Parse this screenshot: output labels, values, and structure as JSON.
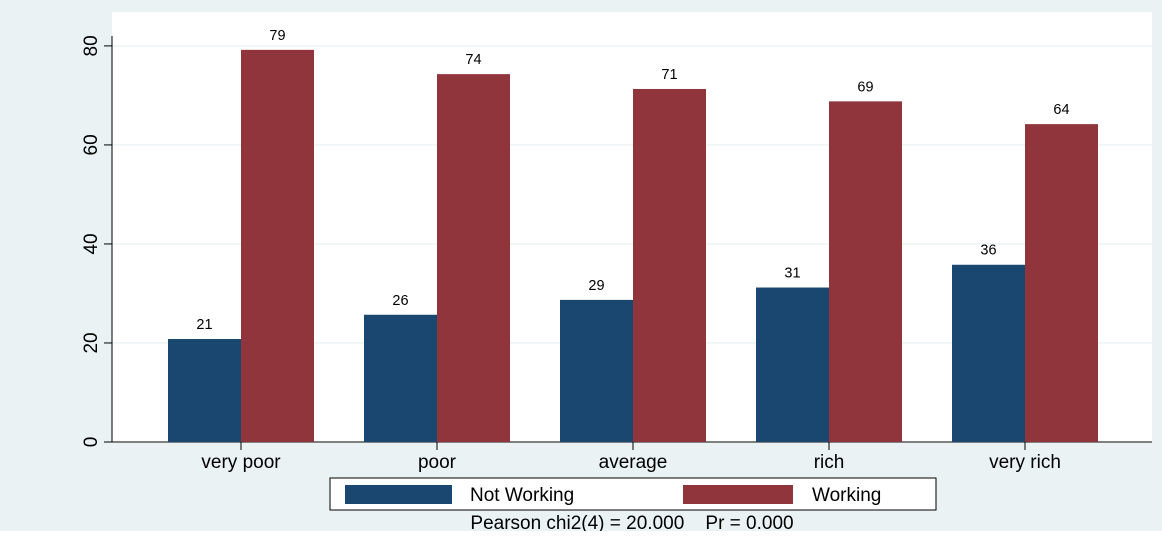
{
  "chart_data": {
    "type": "bar",
    "categories": [
      "very poor",
      "poor",
      "average",
      "rich",
      "very rich"
    ],
    "series": [
      {
        "name": "Not Working",
        "values": [
          20.8,
          25.7,
          28.7,
          31.2,
          35.8
        ],
        "labels": [
          "21",
          "26",
          "29",
          "31",
          "36"
        ],
        "color": "#1a476f"
      },
      {
        "name": "Working",
        "values": [
          79.2,
          74.3,
          71.3,
          68.8,
          64.2
        ],
        "labels": [
          "79",
          "74",
          "71",
          "69",
          "64"
        ],
        "color": "#90353b"
      }
    ],
    "ylim": [
      0,
      82
    ],
    "yticks": [
      0,
      20,
      40,
      60,
      80
    ],
    "ytick_labels": [
      "0",
      "20",
      "40",
      "60",
      "80"
    ],
    "grid": true,
    "legend_position": "bottom",
    "note": "Pearson chi2(4) = 20.000    Pr = 0.000",
    "colors": {
      "plot_background": "#ffffff",
      "outer_background": "#eaf2f3",
      "grid": "#eaf2f3"
    }
  }
}
